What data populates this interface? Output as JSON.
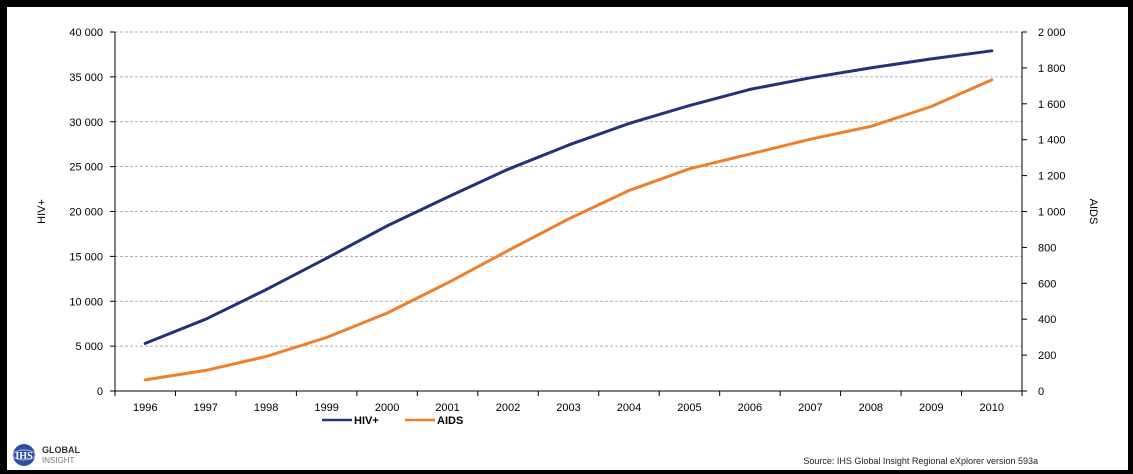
{
  "chart_data": {
    "type": "line",
    "x": [
      "1996",
      "1997",
      "1998",
      "1999",
      "2000",
      "2001",
      "2002",
      "2003",
      "2004",
      "2005",
      "2006",
      "2007",
      "2008",
      "2009",
      "2010"
    ],
    "series": [
      {
        "name": "HIV+",
        "axis": "left",
        "color": "#23337a",
        "values": [
          5300,
          8000,
          11300,
          14800,
          18400,
          21600,
          24700,
          27400,
          29800,
          31800,
          33600,
          34900,
          36000,
          37000,
          37900
        ]
      },
      {
        "name": "AIDS",
        "axis": "right",
        "color": "#ee7f2d",
        "values": [
          62,
          115,
          192,
          298,
          434,
          602,
          782,
          958,
          1117,
          1238,
          1320,
          1403,
          1474,
          1585,
          1733
        ]
      }
    ],
    "ylabel_left": "HIV+",
    "ylabel_right": "AIDS",
    "ylim_left": [
      0,
      40000
    ],
    "ylim_right": [
      0,
      2000
    ],
    "yticks_left": [
      "0",
      "5 000",
      "10 000",
      "15 000",
      "20 000",
      "25 000",
      "30 000",
      "35 000",
      "40 000"
    ],
    "yticks_right": [
      "0",
      "200",
      "400",
      "600",
      "800",
      "1 000",
      "1 200",
      "1 400",
      "1 600",
      "1 800",
      "2 000"
    ],
    "grid": true,
    "legend_position": "bottom"
  },
  "logo": {
    "initials": "IHS",
    "line1": "GLOBAL",
    "line2": "INSIGHT"
  },
  "source": "Source: IHS Global Insight Regional eXplorer version 593a"
}
